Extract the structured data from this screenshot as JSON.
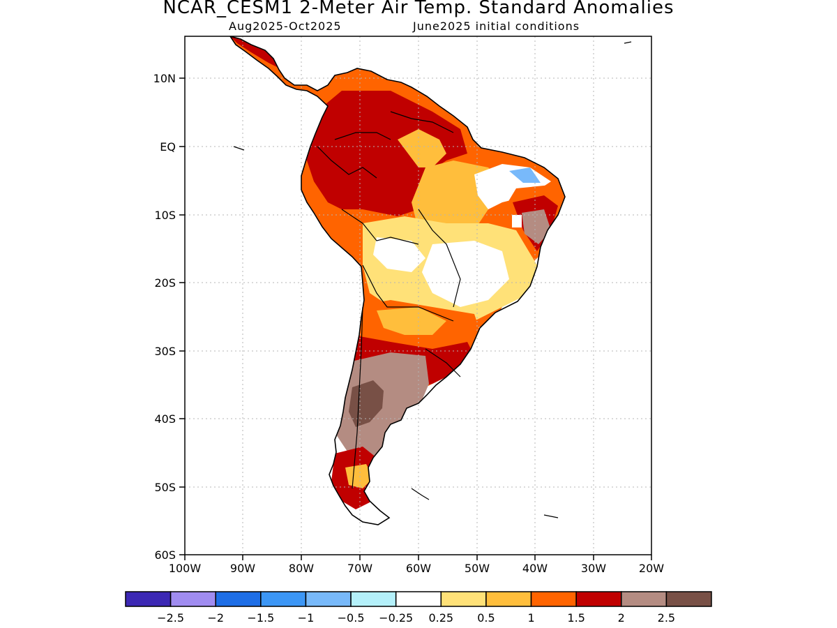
{
  "title": "NCAR_CESM1 2-Meter Air Temp. Standard Anomalies",
  "subtitle_left": "Aug2025-Oct2025",
  "subtitle_right": "June2025 initial conditions",
  "lat_labels": [
    "10N",
    "EQ",
    "10S",
    "20S",
    "30S",
    "40S",
    "50S",
    "60S"
  ],
  "lon_labels": [
    "100W",
    "90W",
    "80W",
    "70W",
    "60W",
    "50W",
    "40W",
    "30W",
    "20W"
  ],
  "colorbar": {
    "colors": [
      "#3c28b4",
      "#a08cf0",
      "#1e6ee6",
      "#3c96f5",
      "#78b9fa",
      "#b4f0fa",
      "#ffffff",
      "#ffe178",
      "#ffbe3c",
      "#ff6400",
      "#c00000",
      "#b48c82",
      "#785046"
    ],
    "labels": [
      "-2.5",
      "-2",
      "-1.5",
      "-1",
      "-0.5",
      "-0.25",
      "0.25",
      "0.5",
      "1",
      "1.5",
      "2",
      "2.5"
    ]
  }
}
